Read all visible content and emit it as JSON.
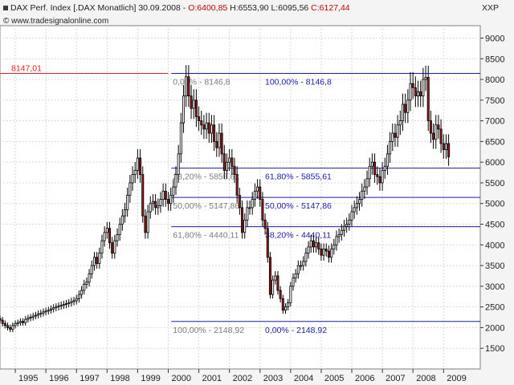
{
  "header": {
    "title": "DAX Perf. Index [.DAX  Monatlich] 30.09.2008 - ",
    "open": "O:6400,85",
    "sep1": " H:6553,90 L:6095,56 ",
    "close": "C:6127,44",
    "scale_label": "XXP",
    "site": "www.tradesignalonline.com"
  },
  "colors": {
    "background": "#f4f4f4",
    "plot_bg": "#ffffff",
    "grid": "#d8d8d8",
    "up_candle": "#ffffff",
    "down_candle": "#9a1a1a",
    "fib_line": "#1a1aa8",
    "fib_left_text": "#7a7a7a",
    "fib_right_text": "#1a1aa8",
    "high_line": "#e02020"
  },
  "chart_data": {
    "type": "candlestick",
    "title": "DAX Perf. Index [.DAX  Monatlich] 30.09.2008",
    "ylim": [
      1000,
      9300
    ],
    "yticks": [
      1500,
      2000,
      2500,
      3000,
      3500,
      4000,
      4500,
      5000,
      5500,
      6000,
      6500,
      7000,
      7500,
      8000,
      8500,
      9000
    ],
    "ytick_labels": [
      "1500",
      "2000",
      "2500",
      "3000",
      "3500",
      "4000",
      "4500",
      "5000",
      "5500",
      "6000",
      "6500",
      "7000",
      "7500",
      "8000",
      "8500",
      "9000"
    ],
    "xlim": [
      1994.5,
      2010.2
    ],
    "xticks": [
      1995,
      1996,
      1997,
      1998,
      1999,
      2000,
      2001,
      2002,
      2003,
      2004,
      2005,
      2006,
      2007,
      2008,
      2009
    ],
    "xtick_labels": [
      "1995",
      "1996",
      "1997",
      "1998",
      "1999",
      "2000",
      "2001",
      "2002",
      "2003",
      "2004",
      "2005",
      "2006",
      "2007",
      "2008",
      "2009"
    ],
    "grid": true,
    "high_marker": {
      "value": 8147.01,
      "label": "8147,01",
      "from_x": 1994.5,
      "to_x": 2000.0
    },
    "fib_levels_left": [
      {
        "y": 8146.8,
        "label": "0,00% - 8146,8"
      },
      {
        "y": 5855.61,
        "label": "38,20% - 5855,61"
      },
      {
        "y": 5147.86,
        "label": "50,00% - 5147,86"
      },
      {
        "y": 4440.11,
        "label": "61,80% - 4440,11"
      },
      {
        "y": 2148.92,
        "label": "100,00% - 2148,92"
      }
    ],
    "fib_levels_right": [
      {
        "y": 8146.8,
        "label": "100,00% - 8146,8"
      },
      {
        "y": 5855.61,
        "label": "61,80% - 5855,61"
      },
      {
        "y": 5147.86,
        "label": "50,00% - 5147,86"
      },
      {
        "y": 4440.11,
        "label": "38,20% - 4440,11"
      },
      {
        "y": 2148.92,
        "label": "0,00% - 2148,92"
      }
    ],
    "fib_x_start": 2000.1,
    "fib_x_end": 2010.2,
    "series": [
      {
        "x_start": 1994.5,
        "x_step": 0.08333,
        "close": [
          2180,
          2100,
          2050,
          2000,
          1960,
          2050,
          2100,
          2120,
          2150,
          2120,
          2200,
          2230,
          2250,
          2280,
          2300,
          2330,
          2350,
          2380,
          2400,
          2420,
          2450,
          2480,
          2500,
          2520,
          2540,
          2560,
          2580,
          2600,
          2630,
          2650,
          2700,
          2800,
          2900,
          3050,
          3100,
          3300,
          3500,
          3700,
          3550,
          3800,
          4100,
          4300,
          4400,
          4050,
          3800,
          4100,
          4250,
          4500,
          4700,
          4850,
          5200,
          5500,
          5700,
          5800,
          6100,
          5700,
          4700,
          4300,
          4800,
          5000,
          5050,
          4900,
          4950,
          5100,
          5300,
          5100,
          5000,
          5200,
          5400,
          5700,
          6200,
          6950,
          7600,
          8064,
          7600,
          7300,
          7500,
          7100,
          7000,
          6900,
          6800,
          6950,
          6700,
          6900,
          6500,
          6350,
          6700,
          6200,
          5800,
          6000,
          6100,
          5900,
          5700,
          5200,
          4900,
          4300,
          4600,
          4900,
          4900,
          5100,
          5300,
          5400,
          5100,
          4600,
          4400,
          3700,
          2800,
          3150,
          3250,
          2900,
          2700,
          2420,
          2500,
          2600,
          3000,
          3200,
          3300,
          3500,
          3500,
          3600,
          3800,
          3950,
          4100,
          3950,
          4050,
          3900,
          3750,
          3900,
          3850,
          3700,
          3900,
          4000,
          4200,
          4250,
          4350,
          4450,
          4500,
          4600,
          4800,
          4900,
          5000,
          5100,
          5300,
          5400,
          5600,
          5900,
          6000,
          5700,
          5650,
          5500,
          5800,
          5900,
          6200,
          6500,
          6700,
          6600,
          6900,
          7000,
          7400,
          7200,
          7500,
          7900,
          7800,
          7600,
          7700,
          7600,
          8000,
          8050,
          7000,
          6700,
          6550,
          6900,
          6800,
          6450,
          6300,
          6450,
          6127
        ]
      }
    ]
  }
}
